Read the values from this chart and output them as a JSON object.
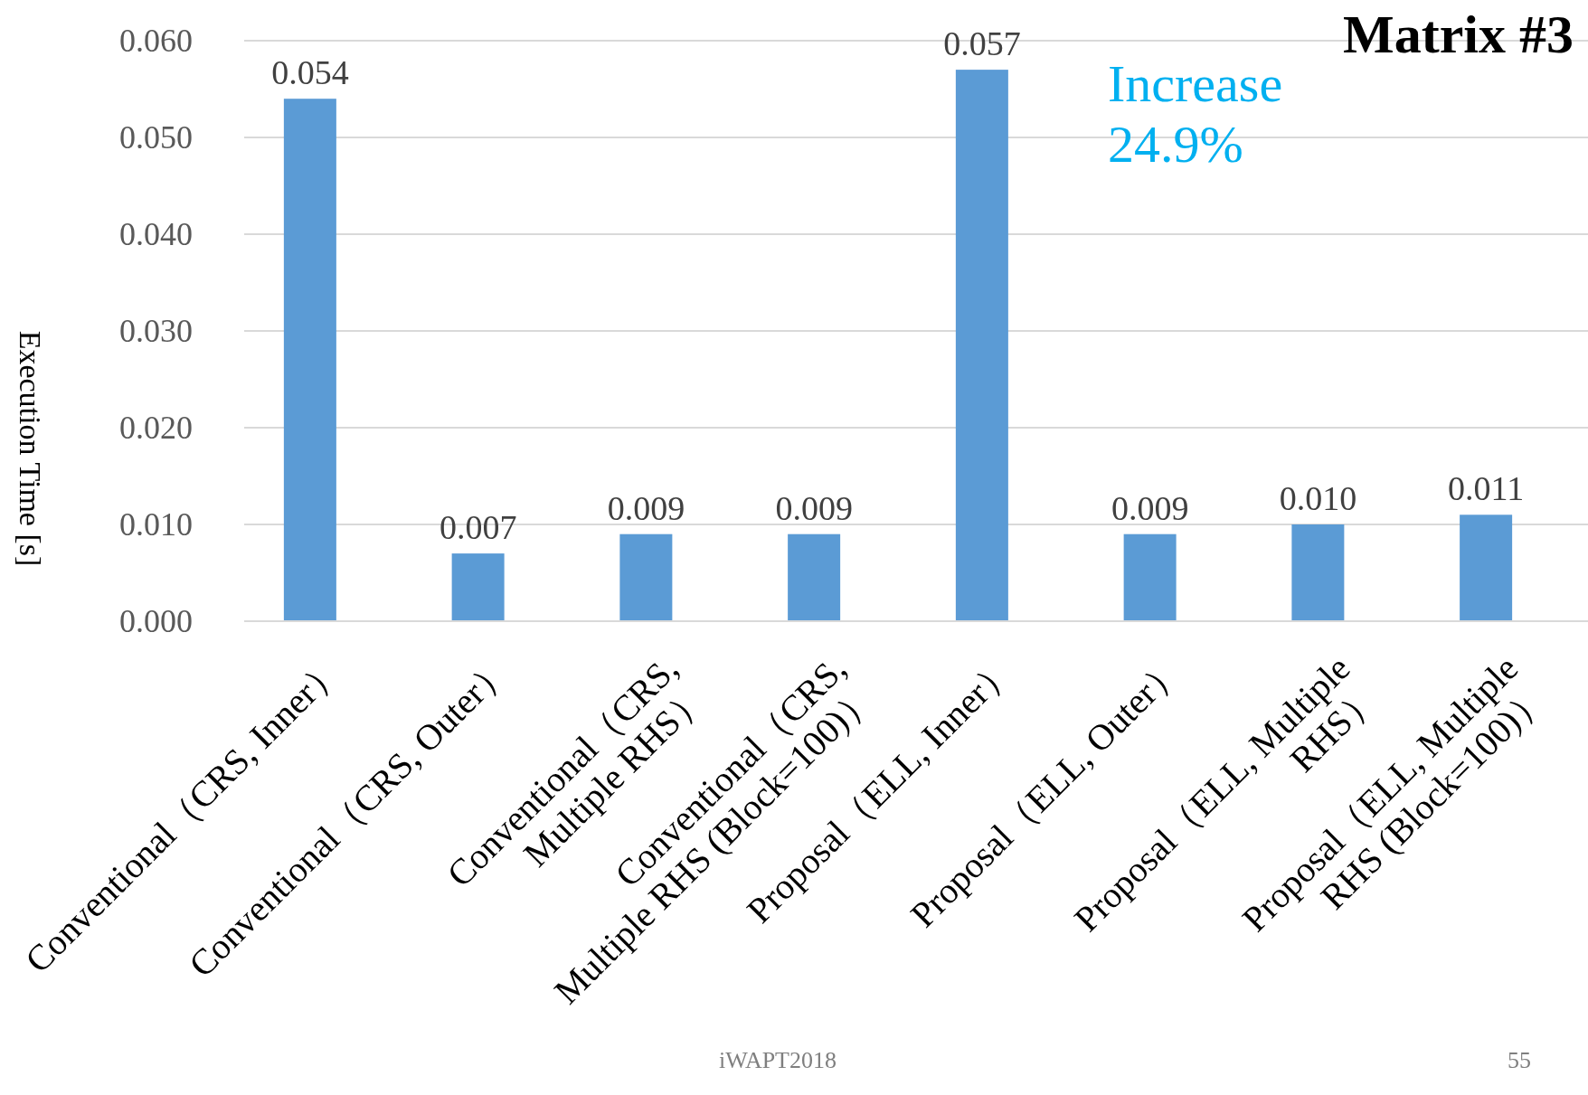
{
  "chart_data": {
    "type": "bar",
    "title": "Matrix #3",
    "ylabel": "Execution Time [s]",
    "categories": [
      "Conventional（CRS, Inner）",
      "Conventional（CRS, Outer）",
      "Conventional（CRS, Multiple RHS）",
      "Conventional（CRS, Multiple RHS (Block=100)）",
      "Proposal（ELL, Inner）",
      "Proposal（ELL, Outer）",
      "Proposal（ELL, Multiple RHS）",
      "Proposal（ELL, Multiple RHS (Block=100)）"
    ],
    "values": [
      0.054,
      0.007,
      0.009,
      0.009,
      0.057,
      0.009,
      0.01,
      0.011
    ],
    "value_labels": [
      "0.054",
      "0.007",
      "0.009",
      "0.009",
      "0.057",
      "0.009",
      "0.010",
      "0.011"
    ],
    "color": "#5b9bd5",
    "ylim": [
      0,
      0.06
    ],
    "yticks": [
      {
        "value": 0,
        "label": "0.000"
      },
      {
        "value": 0.01,
        "label": "0.010"
      },
      {
        "value": 0.02,
        "label": "0.020"
      },
      {
        "value": 0.03,
        "label": "0.030"
      },
      {
        "value": 0.04,
        "label": "0.040"
      },
      {
        "value": 0.05,
        "label": "0.050"
      },
      {
        "value": 0.06,
        "label": "0.060"
      }
    ],
    "grid": "y",
    "annotations": [
      "Increase 24.9%",
      "iWAPT2018",
      "55"
    ]
  }
}
